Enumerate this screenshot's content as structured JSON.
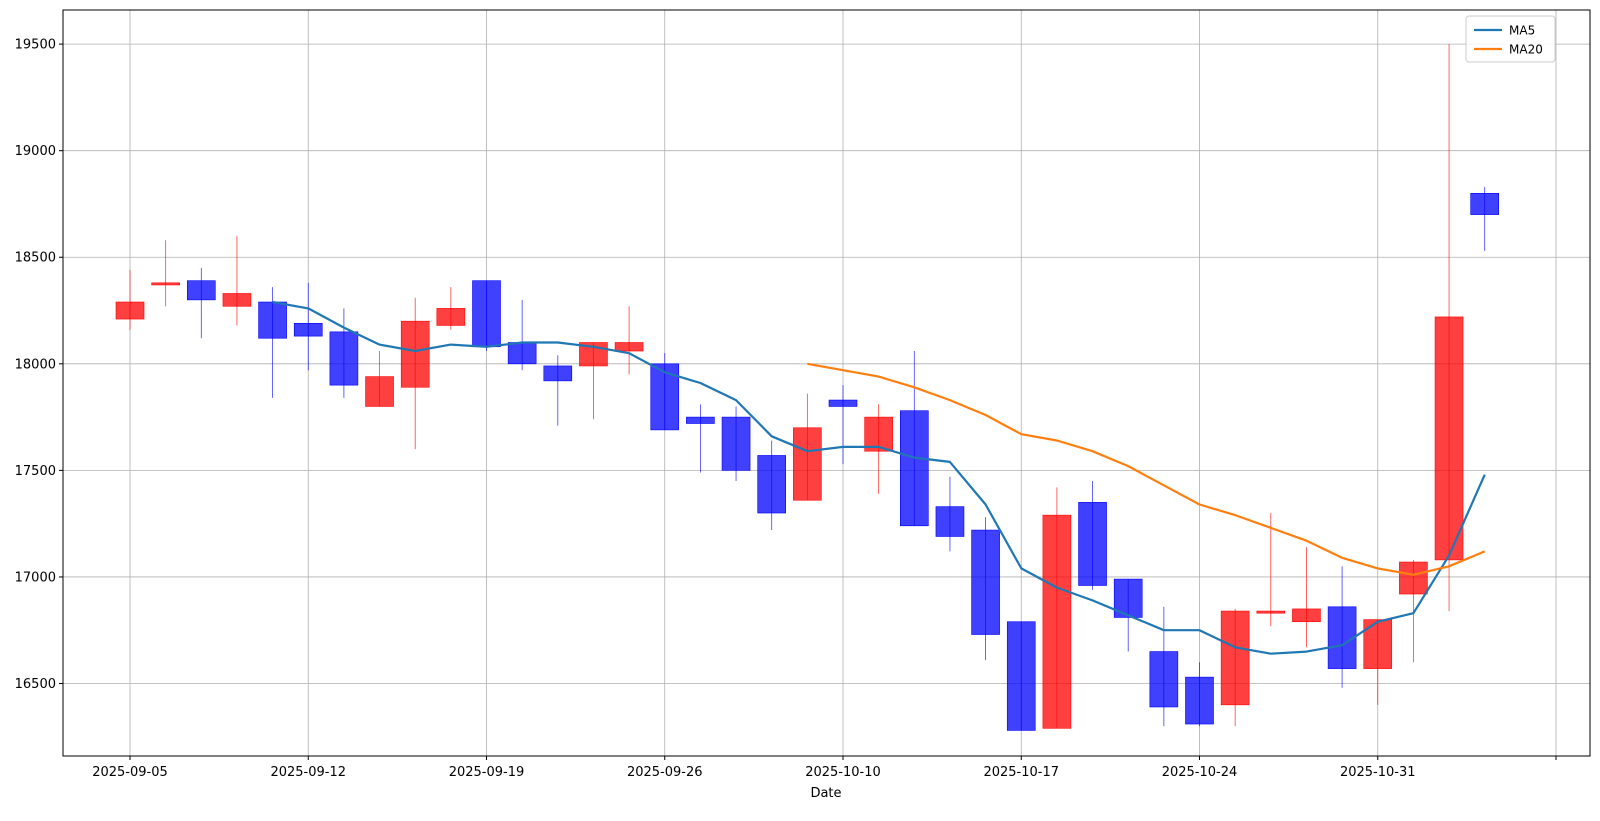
{
  "chart_data": {
    "type": "candlestick",
    "xlabel": "Date",
    "ylabel": "",
    "ylim": [
      16160,
      19660
    ],
    "grid": true,
    "legend_position": "top-right",
    "colors": {
      "up": "#ff0000",
      "down": "#0000ff",
      "MA5": "#1f77b4",
      "MA20": "#ff7f0e"
    },
    "y_ticks": [
      16500,
      17000,
      17500,
      18000,
      18500,
      19000,
      19500
    ],
    "x_ticks": [
      {
        "index": 0,
        "label": "2025-09-05"
      },
      {
        "index": 5,
        "label": "2025-09-12"
      },
      {
        "index": 10,
        "label": "2025-09-19"
      },
      {
        "index": 15,
        "label": "2025-09-26"
      },
      {
        "index": 20,
        "label": "2025-10-10"
      },
      {
        "index": 25,
        "label": "2025-10-17"
      },
      {
        "index": 30,
        "label": "2025-10-24"
      },
      {
        "index": 35,
        "label": "2025-10-31"
      },
      {
        "index": 40,
        "label": ""
      }
    ],
    "candles": [
      {
        "o": 18210,
        "h": 18440,
        "l": 18160,
        "c": 18290
      },
      {
        "o": 18370,
        "h": 18580,
        "l": 18270,
        "c": 18380
      },
      {
        "o": 18390,
        "h": 18450,
        "l": 18120,
        "c": 18300
      },
      {
        "o": 18270,
        "h": 18600,
        "l": 18180,
        "c": 18330
      },
      {
        "o": 18290,
        "h": 18360,
        "l": 17840,
        "c": 18120
      },
      {
        "o": 18190,
        "h": 18380,
        "l": 17970,
        "c": 18130
      },
      {
        "o": 18150,
        "h": 18260,
        "l": 17840,
        "c": 17900
      },
      {
        "o": 17800,
        "h": 18060,
        "l": 17800,
        "c": 17940
      },
      {
        "o": 17890,
        "h": 18310,
        "l": 17600,
        "c": 18200
      },
      {
        "o": 18180,
        "h": 18360,
        "l": 18160,
        "c": 18260
      },
      {
        "o": 18390,
        "h": 18390,
        "l": 18060,
        "c": 18080
      },
      {
        "o": 18100,
        "h": 18300,
        "l": 17970,
        "c": 18000
      },
      {
        "o": 17990,
        "h": 18040,
        "l": 17710,
        "c": 17920
      },
      {
        "o": 17990,
        "h": 18100,
        "l": 17740,
        "c": 18100
      },
      {
        "o": 18060,
        "h": 18270,
        "l": 17950,
        "c": 18100
      },
      {
        "o": 18000,
        "h": 18050,
        "l": 17690,
        "c": 17690
      },
      {
        "o": 17750,
        "h": 17810,
        "l": 17490,
        "c": 17720
      },
      {
        "o": 17750,
        "h": 17800,
        "l": 17450,
        "c": 17500
      },
      {
        "o": 17570,
        "h": 17640,
        "l": 17220,
        "c": 17300
      },
      {
        "o": 17360,
        "h": 17860,
        "l": 17360,
        "c": 17700
      },
      {
        "o": 17830,
        "h": 17900,
        "l": 17530,
        "c": 17800
      },
      {
        "o": 17590,
        "h": 17810,
        "l": 17390,
        "c": 17750
      },
      {
        "o": 17780,
        "h": 18060,
        "l": 17240,
        "c": 17240
      },
      {
        "o": 17330,
        "h": 17470,
        "l": 17120,
        "c": 17190
      },
      {
        "o": 17220,
        "h": 17280,
        "l": 16610,
        "c": 16730
      },
      {
        "o": 16790,
        "h": 16790,
        "l": 16280,
        "c": 16280
      },
      {
        "o": 16290,
        "h": 17420,
        "l": 16290,
        "c": 17290
      },
      {
        "o": 17350,
        "h": 17450,
        "l": 16940,
        "c": 16960
      },
      {
        "o": 16990,
        "h": 16990,
        "l": 16650,
        "c": 16810
      },
      {
        "o": 16650,
        "h": 16860,
        "l": 16300,
        "c": 16390
      },
      {
        "o": 16530,
        "h": 16600,
        "l": 16300,
        "c": 16310
      },
      {
        "o": 16400,
        "h": 16850,
        "l": 16300,
        "c": 16840
      },
      {
        "o": 16830,
        "h": 17300,
        "l": 16770,
        "c": 16840
      },
      {
        "o": 16790,
        "h": 17140,
        "l": 16670,
        "c": 16850
      },
      {
        "o": 16860,
        "h": 17050,
        "l": 16480,
        "c": 16570
      },
      {
        "o": 16570,
        "h": 16800,
        "l": 16400,
        "c": 16800
      },
      {
        "o": 16920,
        "h": 17080,
        "l": 16600,
        "c": 17070
      },
      {
        "o": 17080,
        "h": 19500,
        "l": 16840,
        "c": 18220
      },
      {
        "o": 18800,
        "h": 18830,
        "l": 18530,
        "c": 18700
      }
    ],
    "series": [
      {
        "name": "MA5",
        "x": [
          4,
          5,
          6,
          7,
          8,
          9,
          10,
          11,
          12,
          13,
          14,
          15,
          16,
          17,
          18,
          19,
          20,
          21,
          22,
          23,
          24,
          25,
          26,
          27,
          28,
          29,
          30,
          31,
          32,
          33,
          34,
          35,
          36,
          37,
          38
        ],
        "values": [
          18290,
          18260,
          18170,
          18090,
          18060,
          18090,
          18080,
          18100,
          18100,
          18080,
          18050,
          17960,
          17910,
          17830,
          17660,
          17590,
          17610,
          17610,
          17560,
          17540,
          17340,
          17040,
          16950,
          16890,
          16820,
          16750,
          16750,
          16670,
          16640,
          16650,
          16680,
          16790,
          16830,
          17100,
          17480
        ]
      },
      {
        "name": "MA20",
        "x": [
          19,
          20,
          21,
          22,
          23,
          24,
          25,
          26,
          27,
          28,
          29,
          30,
          31,
          32,
          33,
          34,
          35,
          36,
          37,
          38
        ],
        "values": [
          18000,
          17970,
          17940,
          17890,
          17830,
          17760,
          17670,
          17640,
          17590,
          17520,
          17430,
          17340,
          17290,
          17230,
          17170,
          17090,
          17040,
          17010,
          17050,
          17120
        ]
      }
    ]
  }
}
